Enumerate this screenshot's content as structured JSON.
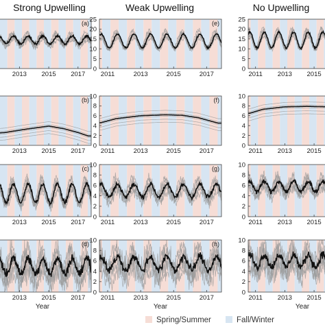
{
  "colors": {
    "spring_summer": "#f6ddd6",
    "fall_winter": "#d7e5f2",
    "mean_line": "#111111",
    "station_lines": "#9a9a9a"
  },
  "legend": {
    "items": [
      {
        "label": "Spring/Summer",
        "color": "#f6ddd6"
      },
      {
        "label": "Fall/Winter",
        "color": "#d7e5f2"
      }
    ]
  },
  "chart_data": {
    "type": "line",
    "layout": "grid of small multiples, 4 rows x 3 columns (third column cropped at right edge, first column cropped at left edge)",
    "columns": [
      "Strong Upwelling",
      "Weak Upwelling",
      "No Upwelling"
    ],
    "panels": [
      {
        "id": "a",
        "column": "Strong Upwelling",
        "row": 1,
        "label": "(a)",
        "yticks": [],
        "ylim": [
          0,
          25
        ],
        "kind": "seasonal",
        "mean": 14.5,
        "amplitude": 2.0,
        "noise": 1.0
      },
      {
        "id": "b",
        "column": "Strong Upwelling",
        "row": 2,
        "label": "(b)",
        "yticks": [],
        "ylim": [
          0,
          10
        ],
        "kind": "trend",
        "series_x": [
          2010.6,
          2012,
          2013.5,
          2015,
          2016,
          2017,
          2017.7
        ],
        "series_y": [
          2.3,
          2.6,
          3.3,
          3.9,
          3.4,
          2.6,
          1.9
        ]
      },
      {
        "id": "c",
        "column": "Strong Upwelling",
        "row": 3,
        "label": "(c)",
        "yticks": [],
        "ylim": [
          0,
          10
        ],
        "kind": "seasonal",
        "mean": 4.5,
        "amplitude": 1.8,
        "noise": 0.6
      },
      {
        "id": "d",
        "column": "Strong Upwelling",
        "row": 4,
        "label": "(d)",
        "yticks": [],
        "ylim": [
          0,
          10
        ],
        "kind": "seasonal",
        "mean": 5.0,
        "amplitude": 1.5,
        "noise": 1.4
      },
      {
        "id": "e",
        "column": "Weak Upwelling",
        "row": 1,
        "label": "(e)",
        "yticks": [
          0,
          5,
          10,
          15,
          20,
          25
        ],
        "ylim": [
          0,
          25
        ],
        "kind": "seasonal",
        "mean": 14.0,
        "amplitude": 3.5,
        "noise": 0.8
      },
      {
        "id": "f",
        "column": "Weak Upwelling",
        "row": 2,
        "label": "(f)",
        "yticks": [
          0,
          2,
          4,
          6,
          8,
          10
        ],
        "ylim": [
          0,
          10
        ],
        "kind": "trend",
        "series_x": [
          2010.6,
          2011.5,
          2013,
          2014.5,
          2015.5,
          2016.5,
          2017.7
        ],
        "series_y": [
          4.6,
          5.4,
          6.0,
          6.2,
          6.1,
          5.6,
          4.5
        ]
      },
      {
        "id": "g",
        "column": "Weak Upwelling",
        "row": 3,
        "label": "(g)",
        "yticks": [
          0,
          2,
          4,
          6,
          8,
          10
        ],
        "ylim": [
          0,
          10
        ],
        "kind": "seasonal",
        "mean": 5.0,
        "amplitude": 1.2,
        "noise": 0.7
      },
      {
        "id": "h",
        "column": "Weak Upwelling",
        "row": 4,
        "label": "(h)",
        "yticks": [
          0,
          2,
          4,
          6,
          8,
          10
        ],
        "ylim": [
          0,
          10
        ],
        "kind": "seasonal",
        "mean": 5.5,
        "amplitude": 1.3,
        "noise": 1.3
      },
      {
        "id": "i",
        "column": "No Upwelling",
        "row": 1,
        "label": "",
        "yticks": [
          0,
          5,
          10,
          15,
          20,
          25
        ],
        "ylim": [
          0,
          25
        ],
        "kind": "seasonal",
        "mean": 14.5,
        "amplitude": 4.0,
        "noise": 0.8
      },
      {
        "id": "j",
        "column": "No Upwelling",
        "row": 2,
        "label": "",
        "yticks": [
          0,
          2,
          4,
          6,
          8,
          10
        ],
        "ylim": [
          0,
          10
        ],
        "kind": "trend",
        "series_x": [
          2010.6,
          2011.5,
          2013,
          2014.5,
          2016,
          2017.7
        ],
        "series_y": [
          6.5,
          7.3,
          7.8,
          7.9,
          7.8,
          7.6
        ]
      },
      {
        "id": "k",
        "column": "No Upwelling",
        "row": 3,
        "label": "",
        "yticks": [
          0,
          2,
          4,
          6,
          8,
          10
        ],
        "ylim": [
          0,
          10
        ],
        "kind": "seasonal",
        "mean": 5.8,
        "amplitude": 1.0,
        "noise": 0.7
      },
      {
        "id": "l",
        "column": "No Upwelling",
        "row": 4,
        "label": "",
        "yticks": [
          0,
          2,
          4,
          6,
          8,
          10
        ],
        "ylim": [
          0,
          10
        ],
        "kind": "seasonal",
        "mean": 6.0,
        "amplitude": 1.2,
        "noise": 1.3
      }
    ],
    "xlim": [
      2010.5,
      2017.9
    ],
    "xticks": [
      2011,
      2013,
      2015,
      2017
    ],
    "xlabel": "Year",
    "grid": false,
    "legend_placement": "bottom-center"
  }
}
